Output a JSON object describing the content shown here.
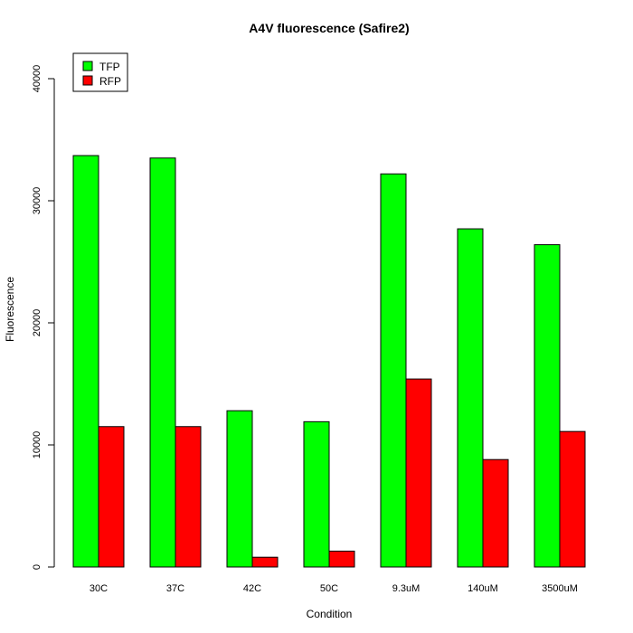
{
  "chart_data": {
    "type": "bar",
    "title": "A4V fluorescence (Safire2)",
    "xlabel": "Condition",
    "ylabel": "Fluorescence",
    "categories": [
      "30C",
      "37C",
      "42C",
      "50C",
      "9.3uM",
      "140uM",
      "3500uM"
    ],
    "series": [
      {
        "name": "TFP",
        "color": "#00ff00",
        "values": [
          33700,
          33500,
          12800,
          11900,
          32200,
          27700,
          26400
        ]
      },
      {
        "name": "RFP",
        "color": "#ff0000",
        "values": [
          11500,
          11500,
          800,
          1300,
          15400,
          8800,
          11100
        ]
      }
    ],
    "ylim": [
      0,
      40000
    ],
    "yticks": [
      0,
      10000,
      20000,
      30000,
      40000
    ],
    "ytick_labels": [
      "0",
      "10000",
      "20000",
      "30000",
      "40000"
    ],
    "grid": false,
    "legend_position": "top-left"
  }
}
